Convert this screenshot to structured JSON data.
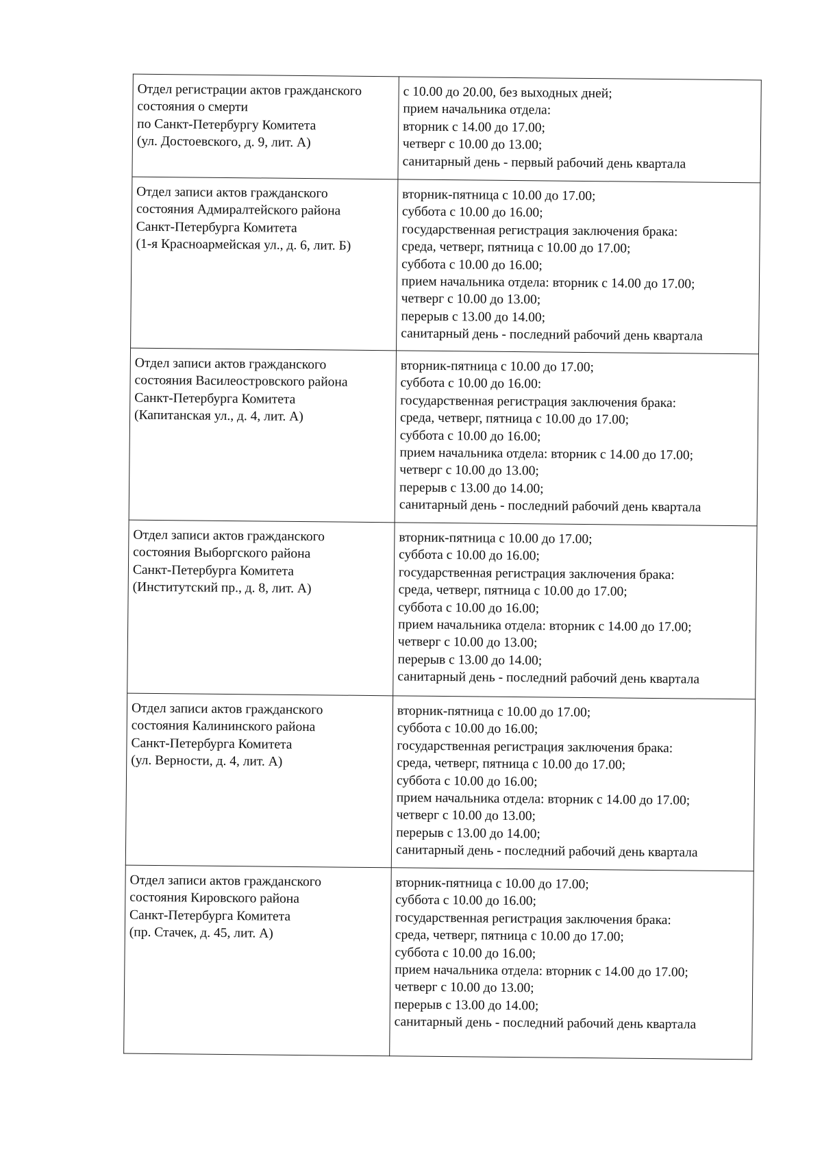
{
  "table": {
    "rows": [
      {
        "office": [
          "Отдел регистрации актов гражданского",
          "состояния о смерти",
          "по Санкт-Петербургу Комитета",
          "(ул. Достоевского, д. 9, лит. А)"
        ],
        "schedule": [
          "с 10.00 до 20.00, без выходных дней;",
          "прием начальника отдела:",
          "вторник с 14.00 до 17.00;",
          "четверг с 10.00 до 13.00;",
          "санитарный день - первый рабочий день квартала"
        ]
      },
      {
        "office": [
          "Отдел записи актов гражданского",
          "состояния Адмиралтейского района",
          "Санкт-Петербурга Комитета",
          "(1-я Красноармейская ул., д. 6, лит. Б)"
        ],
        "schedule": [
          "вторник-пятница с 10.00 до 17.00;",
          "суббота с 10.00 до 16.00;",
          "государственная регистрация заключения брака:",
          "среда, четверг, пятница с 10.00 до 17.00;",
          "суббота с 10.00 до 16.00;",
          "прием начальника отдела: вторник с 14.00 до 17.00;",
          "четверг с 10.00 до 13.00;",
          "перерыв с 13.00 до 14.00;",
          "санитарный день - последний рабочий день квартала"
        ]
      },
      {
        "office": [
          "Отдел записи актов гражданского",
          "состояния Василеостровского района",
          "Санкт-Петербурга Комитета",
          "(Капитанская ул., д. 4, лит. А)"
        ],
        "schedule": [
          "вторник-пятница с 10.00 до 17.00;",
          "суббота с 10.00 до 16.00:",
          "государственная регистрация заключения брака:",
          "среда, четверг, пятница с 10.00 до 17.00;",
          "суббота с 10.00 до 16.00;",
          "прием начальника отдела: вторник с 14.00 до 17.00;",
          "четверг с 10.00 до 13.00;",
          "перерыв с 13.00 до 14.00;",
          "санитарный день - последний рабочий день квартала"
        ]
      },
      {
        "office": [
          "Отдел записи актов гражданского",
          "состояния Выборгского района",
          "Санкт-Петербурга Комитета",
          "(Институтский пр., д. 8, лит. А)"
        ],
        "schedule": [
          "вторник-пятница с 10.00 до 17.00;",
          "суббота с 10.00 до 16.00;",
          "государственная регистрация заключения брака:",
          "среда, четверг, пятница с 10.00 до 17.00;",
          "суббота с 10.00 до 16.00;",
          "прием начальника отдела: вторник с 14.00 до 17.00;",
          "четверг с 10.00 до 13.00;",
          "перерыв с 13.00 до 14.00;",
          "санитарный день - последний рабочий день квартала"
        ]
      },
      {
        "office": [
          "Отдел записи актов гражданского",
          "состояния Калининского района",
          "Санкт-Петербурга Комитета",
          "(ул. Верности, д. 4, лит. А)"
        ],
        "schedule": [
          "вторник-пятница с 10.00 до 17.00;",
          "суббота с 10.00 до 16.00;",
          "государственная регистрация заключения брака:",
          "среда, четверг, пятница с 10.00 до 17.00;",
          "суббота с 10.00 до 16.00;",
          "прием начальника отдела: вторник с 14.00 до 17.00;",
          "четверг с 10.00 до 13.00;",
          "перерыв с 13.00 до 14.00;",
          "санитарный день - последний рабочий день квартала"
        ]
      },
      {
        "office": [
          "Отдел записи актов гражданского",
          "состояния Кировского района",
          "Санкт-Петербурга Комитета",
          "(пр. Стачек, д. 45, лит. А)"
        ],
        "schedule": [
          "вторник-пятница с 10.00 до 17.00;",
          "суббота с 10.00 до 16.00;",
          "государственная регистрация заключения брака:",
          "среда, четверг, пятница с 10.00 до 17.00;",
          "суббота с 10.00 до 16.00;",
          "прием начальника отдела: вторник с 14.00 до 17.00;",
          "четверг с 10.00 до 13.00;",
          "перерыв с 13.00 до 14.00;",
          "санитарный день - последний рабочий день квартала"
        ]
      }
    ]
  }
}
